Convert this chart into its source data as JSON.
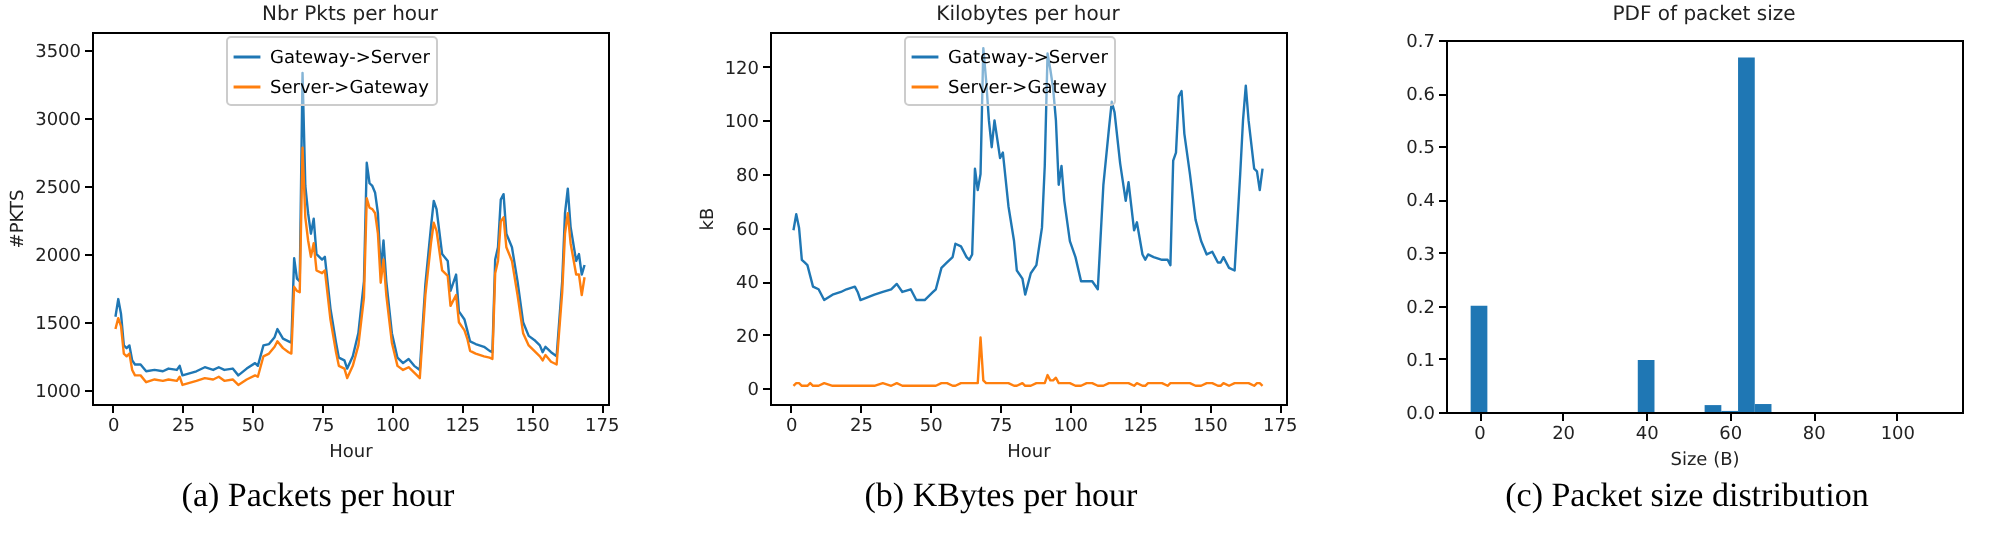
{
  "chart_data": [
    {
      "type": "line",
      "title": "Nbr Pkts per hour",
      "xlabel": "Hour",
      "ylabel": "#PKTS",
      "annotations": [
        "(a) Packets per hour"
      ],
      "legend": "top",
      "grid": false,
      "xlim": [
        -7.4,
        177.4
      ],
      "xticks": [
        0,
        25,
        50,
        75,
        100,
        125,
        150,
        175
      ],
      "ylim": [
        900,
        3630
      ],
      "yticks": [
        1000,
        1500,
        2000,
        2500,
        3000,
        3500
      ],
      "x": [
        1,
        2,
        3,
        4,
        5,
        6,
        7,
        8,
        10,
        12,
        15,
        18,
        20,
        23,
        24,
        25,
        30,
        33,
        36,
        38,
        40,
        43,
        45,
        48,
        51,
        52,
        54,
        56,
        58,
        59,
        61,
        63,
        64,
        65,
        66,
        67,
        68,
        69,
        70,
        71,
        72,
        73,
        75,
        76,
        78,
        80,
        81,
        83,
        84,
        86,
        88,
        90,
        91,
        92,
        93,
        94,
        95,
        96,
        97,
        98,
        100,
        102,
        104,
        106,
        108,
        110,
        112,
        114,
        115,
        116,
        118,
        120,
        121,
        123,
        124,
        126,
        127,
        128,
        130,
        133,
        135,
        136,
        137,
        138,
        139,
        140,
        141,
        143,
        145,
        147,
        149,
        151,
        153,
        154,
        155,
        157,
        159,
        161,
        162,
        163,
        164,
        166,
        167,
        168,
        169
      ],
      "series": [
        {
          "name": "Gateway->Server",
          "color": "#1f77b4",
          "values": [
            1540,
            1670,
            1560,
            1330,
            1310,
            1330,
            1220,
            1190,
            1190,
            1140,
            1150,
            1140,
            1160,
            1150,
            1180,
            1110,
            1140,
            1170,
            1150,
            1170,
            1150,
            1160,
            1110,
            1160,
            1200,
            1180,
            1330,
            1340,
            1390,
            1450,
            1380,
            1360,
            1350,
            1970,
            1820,
            1800,
            3330,
            2500,
            2300,
            2150,
            2260,
            2000,
            1960,
            1980,
            1600,
            1350,
            1240,
            1220,
            1160,
            1250,
            1420,
            1800,
            2670,
            2520,
            2500,
            2450,
            2300,
            1880,
            2100,
            1800,
            1420,
            1240,
            1200,
            1230,
            1180,
            1150,
            1780,
            2200,
            2390,
            2330,
            2000,
            1950,
            1730,
            1850,
            1580,
            1520,
            1440,
            1360,
            1340,
            1320,
            1290,
            1280,
            1960,
            2050,
            2400,
            2440,
            2150,
            2050,
            1800,
            1500,
            1400,
            1370,
            1330,
            1280,
            1320,
            1280,
            1250,
            1800,
            2300,
            2480,
            2200,
            1950,
            2000,
            1850,
            1920
          ]
        },
        {
          "name": "Server->Gateway",
          "color": "#ff7f0e",
          "values": [
            1450,
            1530,
            1470,
            1270,
            1250,
            1270,
            1150,
            1110,
            1110,
            1060,
            1080,
            1070,
            1080,
            1070,
            1100,
            1040,
            1070,
            1090,
            1080,
            1100,
            1070,
            1080,
            1040,
            1080,
            1110,
            1100,
            1250,
            1270,
            1320,
            1360,
            1310,
            1280,
            1270,
            1760,
            1730,
            1720,
            2780,
            2270,
            2100,
            1980,
            2080,
            1880,
            1860,
            1880,
            1520,
            1280,
            1180,
            1160,
            1090,
            1180,
            1330,
            1680,
            2410,
            2340,
            2330,
            2300,
            2150,
            1790,
            1960,
            1700,
            1350,
            1180,
            1150,
            1170,
            1130,
            1090,
            1700,
            2080,
            2230,
            2170,
            1880,
            1840,
            1620,
            1700,
            1500,
            1440,
            1380,
            1290,
            1270,
            1250,
            1240,
            1230,
            1860,
            1950,
            2240,
            2270,
            2050,
            1950,
            1700,
            1420,
            1330,
            1290,
            1250,
            1220,
            1260,
            1210,
            1190,
            1720,
            2150,
            2300,
            2080,
            1850,
            1850,
            1700,
            1830
          ]
        }
      ]
    },
    {
      "type": "line",
      "title": "Kilobytes per hour",
      "xlabel": "Hour",
      "ylabel": "kB",
      "annotations": [
        "(b) KBytes per hour"
      ],
      "legend": "top",
      "grid": false,
      "xlim": [
        -7.4,
        177.4
      ],
      "xticks": [
        0,
        25,
        50,
        75,
        100,
        125,
        150,
        175
      ],
      "ylim": [
        -5.8,
        133
      ],
      "yticks": [
        0,
        20,
        40,
        60,
        80,
        100,
        120
      ],
      "x": [
        1,
        2,
        3,
        4,
        5,
        6,
        7,
        8,
        10,
        12,
        15,
        18,
        20,
        23,
        24,
        25,
        30,
        33,
        36,
        38,
        40,
        43,
        45,
        48,
        51,
        52,
        54,
        56,
        58,
        59,
        61,
        63,
        64,
        65,
        66,
        67,
        68,
        69,
        70,
        71,
        72,
        73,
        75,
        76,
        78,
        80,
        81,
        83,
        84,
        86,
        88,
        90,
        91,
        92,
        93,
        94,
        95,
        96,
        97,
        98,
        100,
        102,
        104,
        106,
        108,
        110,
        112,
        114,
        115,
        116,
        118,
        120,
        121,
        123,
        124,
        126,
        127,
        128,
        130,
        133,
        135,
        136,
        137,
        138,
        139,
        140,
        141,
        143,
        145,
        147,
        149,
        151,
        153,
        154,
        155,
        157,
        159,
        161,
        162,
        163,
        164,
        166,
        167,
        168,
        169
      ],
      "series": [
        {
          "name": "Gateway->Server",
          "color": "#1f77b4",
          "values": [
            59,
            65,
            60,
            48,
            47,
            46,
            42,
            38,
            37,
            33,
            35,
            36,
            37,
            38,
            36,
            33,
            35,
            36,
            37,
            39,
            36,
            37,
            33,
            33,
            36,
            37,
            45,
            47,
            49,
            54,
            53,
            49,
            48,
            50,
            82,
            74,
            80,
            127,
            115,
            100,
            90,
            100,
            86,
            88,
            68,
            55,
            44,
            41,
            35,
            43,
            46,
            60,
            83,
            125,
            119,
            112,
            100,
            76,
            83,
            70,
            55,
            49,
            40,
            40,
            40,
            37,
            76,
            97,
            107,
            103,
            84,
            70,
            77,
            59,
            62,
            50,
            48,
            50,
            49,
            48,
            48,
            46,
            85,
            88,
            109,
            111,
            95,
            80,
            63,
            55,
            50,
            51,
            47,
            47,
            49,
            45,
            44,
            80,
            100,
            113,
            100,
            82,
            81,
            74,
            82
          ]
        },
        {
          "name": "Server->Gateway",
          "color": "#ff7f0e",
          "values": [
            1,
            2,
            2,
            1,
            1,
            1,
            2,
            1,
            1,
            2,
            1,
            1,
            1,
            1,
            1,
            1,
            1,
            2,
            1,
            2,
            1,
            1,
            1,
            1,
            1,
            1,
            2,
            2,
            1,
            1,
            2,
            2,
            2,
            2,
            2,
            2,
            19,
            3,
            2,
            2,
            2,
            2,
            2,
            2,
            2,
            1,
            1,
            2,
            1,
            1,
            2,
            2,
            2,
            5,
            3,
            3,
            4,
            2,
            2,
            2,
            2,
            1,
            1,
            2,
            2,
            1,
            1,
            2,
            2,
            2,
            2,
            2,
            2,
            1,
            2,
            1,
            1,
            2,
            2,
            2,
            1,
            2,
            2,
            2,
            2,
            2,
            2,
            2,
            1,
            1,
            2,
            2,
            1,
            1,
            2,
            1,
            2,
            2,
            2,
            2,
            2,
            1,
            2,
            2,
            1
          ]
        }
      ]
    },
    {
      "type": "histogram",
      "title": "PDF of packet size",
      "xlabel": "Size (B)",
      "annotations": [
        "(c) Packet size distribution"
      ],
      "grid": false,
      "xlim": [
        -7.9,
        115.6
      ],
      "xticks": [
        0,
        20,
        40,
        60,
        80,
        100
      ],
      "ylim": [
        0,
        0.7
      ],
      "yticks": [
        {
          "value": 0,
          "label": "0.0"
        },
        0.1,
        0.2,
        0.3,
        0.4,
        0.5,
        0.6,
        0.7
      ],
      "color": "#1f77b4",
      "bins": [
        -2,
        2,
        6,
        10,
        14,
        18,
        22,
        26,
        30,
        34,
        38,
        42,
        46,
        50,
        54,
        58,
        62,
        66,
        70
      ],
      "values": [
        0.2,
        0,
        0,
        0,
        0,
        0,
        0,
        0,
        0,
        0,
        0.098,
        0,
        0,
        0,
        0.013,
        0.002,
        0.667,
        0.015
      ]
    }
  ]
}
